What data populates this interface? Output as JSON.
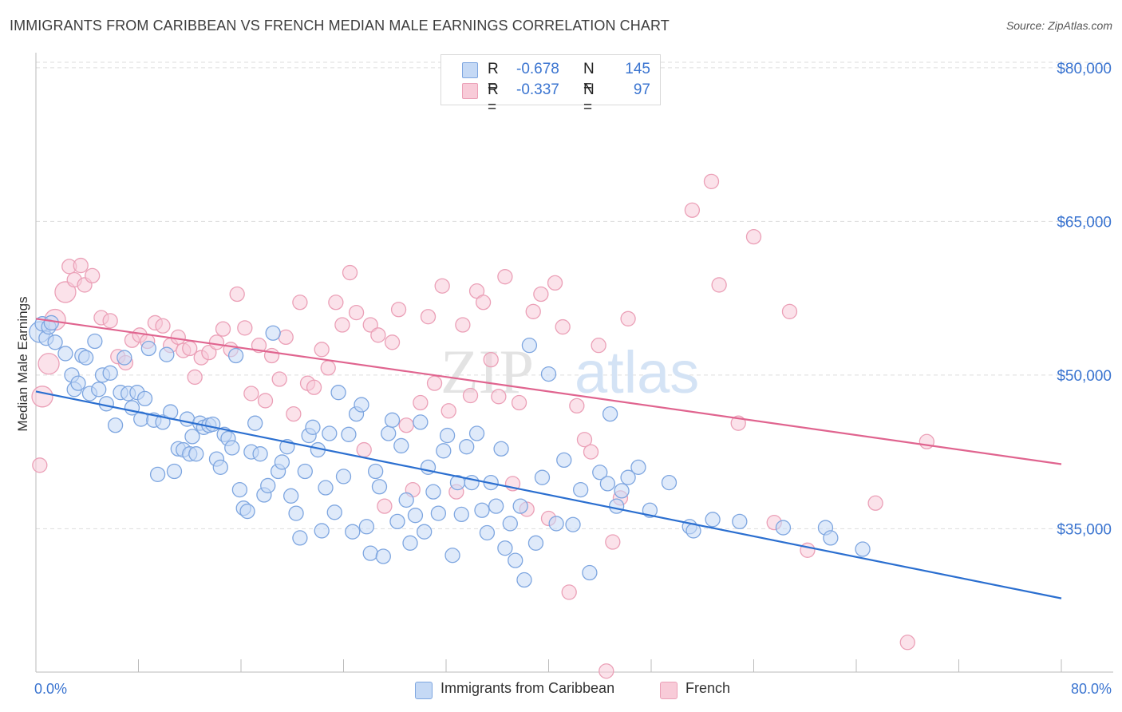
{
  "title": "IMMIGRANTS FROM CARIBBEAN VS FRENCH MEDIAN MALE EARNINGS CORRELATION CHART",
  "source": "Source: ZipAtlas.com",
  "watermark": {
    "zip": "ZIP",
    "atlas": "atlas"
  },
  "legend": {
    "rows": [
      {
        "r_label": "R =",
        "r_value": "-0.678",
        "n_label": "N =",
        "n_value": "145"
      },
      {
        "r_label": "R =",
        "r_value": "-0.337",
        "n_label": "N =",
        "n_value": "97"
      }
    ]
  },
  "bottom_legend": [
    "Immigrants from Caribbean",
    "French"
  ],
  "colors": {
    "blue_fill": "#c5d9f5",
    "blue_stroke": "#7ea6e0",
    "blue_line": "#2b6fd0",
    "pink_fill": "#f8cbd8",
    "pink_stroke": "#eba0b7",
    "pink_line": "#e0648f",
    "axis_text": "#3a74d0",
    "grid": "#dddddd"
  },
  "chart_data": {
    "type": "scatter",
    "xlabel": "",
    "ylabel": "Median Male Earnings",
    "xlim": [
      0,
      80
    ],
    "ylim": [
      21000,
      83500
    ],
    "x_tick_labels": [
      "0.0%",
      "80.0%"
    ],
    "y_ticks": [
      35000,
      50000,
      65000,
      80000
    ],
    "y_tick_labels": [
      "$35,000",
      "$50,000",
      "$65,000",
      "$80,000"
    ],
    "grid": "dashed horizontal",
    "legend_position": "top-center",
    "series": [
      {
        "name": "Immigrants from Caribbean",
        "color": "#7ea6e0",
        "trend": {
          "x": [
            0,
            80
          ],
          "y": [
            48400,
            28200
          ]
        },
        "points": [
          [
            0.3,
            54.2
          ],
          [
            0.5,
            55.0
          ],
          [
            0.8,
            53.6
          ],
          [
            1.0,
            54.7
          ],
          [
            1.2,
            55.1
          ],
          [
            1.5,
            53.2
          ],
          [
            2.3,
            52.1
          ],
          [
            2.8,
            50.0
          ],
          [
            3.0,
            48.6
          ],
          [
            3.3,
            49.2
          ],
          [
            3.6,
            51.9
          ],
          [
            3.9,
            51.7
          ],
          [
            4.2,
            48.2
          ],
          [
            4.6,
            53.3
          ],
          [
            4.9,
            48.6
          ],
          [
            5.2,
            50.0
          ],
          [
            5.5,
            47.2
          ],
          [
            5.8,
            50.2
          ],
          [
            6.2,
            45.1
          ],
          [
            6.6,
            48.3
          ],
          [
            6.9,
            51.7
          ],
          [
            7.2,
            48.2
          ],
          [
            7.5,
            46.8
          ],
          [
            7.9,
            48.3
          ],
          [
            8.2,
            45.7
          ],
          [
            8.5,
            47.7
          ],
          [
            8.8,
            52.6
          ],
          [
            9.2,
            45.6
          ],
          [
            9.5,
            40.3
          ],
          [
            9.9,
            45.4
          ],
          [
            10.2,
            52.0
          ],
          [
            10.5,
            46.4
          ],
          [
            10.8,
            40.6
          ],
          [
            11.1,
            42.8
          ],
          [
            11.5,
            42.7
          ],
          [
            11.8,
            45.7
          ],
          [
            12.0,
            42.3
          ],
          [
            12.2,
            44.0
          ],
          [
            12.5,
            42.3
          ],
          [
            12.8,
            45.3
          ],
          [
            13.1,
            44.9
          ],
          [
            13.5,
            45.1
          ],
          [
            13.8,
            45.2
          ],
          [
            14.1,
            41.8
          ],
          [
            14.4,
            41.0
          ],
          [
            14.7,
            44.2
          ],
          [
            15.0,
            43.8
          ],
          [
            15.3,
            42.9
          ],
          [
            15.6,
            51.9
          ],
          [
            15.9,
            38.8
          ],
          [
            16.2,
            37.0
          ],
          [
            16.5,
            36.7
          ],
          [
            16.8,
            42.5
          ],
          [
            17.1,
            45.3
          ],
          [
            17.5,
            42.3
          ],
          [
            17.8,
            38.3
          ],
          [
            18.1,
            39.2
          ],
          [
            18.5,
            54.1
          ],
          [
            18.9,
            40.6
          ],
          [
            19.2,
            41.5
          ],
          [
            19.6,
            43.0
          ],
          [
            19.9,
            38.2
          ],
          [
            20.3,
            36.5
          ],
          [
            20.6,
            34.1
          ],
          [
            21.0,
            40.6
          ],
          [
            21.3,
            44.1
          ],
          [
            21.6,
            44.9
          ],
          [
            22.0,
            42.7
          ],
          [
            22.3,
            34.8
          ],
          [
            22.6,
            39.0
          ],
          [
            22.9,
            44.3
          ],
          [
            23.3,
            36.6
          ],
          [
            23.6,
            48.3
          ],
          [
            24.0,
            40.1
          ],
          [
            24.4,
            44.2
          ],
          [
            24.7,
            34.7
          ],
          [
            25.0,
            46.2
          ],
          [
            25.4,
            47.1
          ],
          [
            25.8,
            35.2
          ],
          [
            26.1,
            32.6
          ],
          [
            26.5,
            40.6
          ],
          [
            26.8,
            39.1
          ],
          [
            27.1,
            32.3
          ],
          [
            27.5,
            44.3
          ],
          [
            27.8,
            45.6
          ],
          [
            28.2,
            35.7
          ],
          [
            28.5,
            43.1
          ],
          [
            28.9,
            37.8
          ],
          [
            29.2,
            33.6
          ],
          [
            29.6,
            36.3
          ],
          [
            30.0,
            45.4
          ],
          [
            30.3,
            34.7
          ],
          [
            30.6,
            41.0
          ],
          [
            31.0,
            38.6
          ],
          [
            31.4,
            36.5
          ],
          [
            31.8,
            42.6
          ],
          [
            32.1,
            44.1
          ],
          [
            32.5,
            32.4
          ],
          [
            32.9,
            39.5
          ],
          [
            33.2,
            36.4
          ],
          [
            33.6,
            43.0
          ],
          [
            34.0,
            39.5
          ],
          [
            34.4,
            44.3
          ],
          [
            34.8,
            36.8
          ],
          [
            35.2,
            34.6
          ],
          [
            35.5,
            39.5
          ],
          [
            35.9,
            37.2
          ],
          [
            36.3,
            42.8
          ],
          [
            36.6,
            33.1
          ],
          [
            37.0,
            35.5
          ],
          [
            37.4,
            31.9
          ],
          [
            37.8,
            37.2
          ],
          [
            38.1,
            30.0
          ],
          [
            38.5,
            52.9
          ],
          [
            39.0,
            33.6
          ],
          [
            39.5,
            40.0
          ],
          [
            40.0,
            50.1
          ],
          [
            40.6,
            35.5
          ],
          [
            41.2,
            41.7
          ],
          [
            41.9,
            35.4
          ],
          [
            42.5,
            38.8
          ],
          [
            43.2,
            30.7
          ],
          [
            44.0,
            40.5
          ],
          [
            44.6,
            39.4
          ],
          [
            44.8,
            46.2
          ],
          [
            45.3,
            37.2
          ],
          [
            45.7,
            38.7
          ],
          [
            46.2,
            40.0
          ],
          [
            47.0,
            41.0
          ],
          [
            47.9,
            36.8
          ],
          [
            49.4,
            39.5
          ],
          [
            51.0,
            35.2
          ],
          [
            51.3,
            34.8
          ],
          [
            52.8,
            35.9
          ],
          [
            54.9,
            35.7
          ],
          [
            58.3,
            35.1
          ],
          [
            61.6,
            35.1
          ],
          [
            62.0,
            34.1
          ],
          [
            64.5,
            33.0
          ]
        ]
      },
      {
        "name": "French",
        "color": "#eba0b7",
        "trend": {
          "x": [
            0,
            80
          ],
          "y": [
            55500,
            41300
          ]
        },
        "points": [
          [
            0.3,
            41.2
          ],
          [
            0.5,
            47.9
          ],
          [
            1.0,
            51.1
          ],
          [
            1.5,
            55.4
          ],
          [
            2.3,
            58.1
          ],
          [
            2.6,
            60.6
          ],
          [
            3.0,
            59.3
          ],
          [
            3.5,
            60.7
          ],
          [
            3.8,
            58.8
          ],
          [
            4.4,
            59.7
          ],
          [
            5.1,
            55.6
          ],
          [
            5.8,
            55.3
          ],
          [
            6.4,
            51.8
          ],
          [
            7.0,
            51.2
          ],
          [
            7.5,
            53.4
          ],
          [
            8.1,
            53.9
          ],
          [
            8.7,
            53.3
          ],
          [
            9.3,
            55.1
          ],
          [
            9.9,
            54.8
          ],
          [
            10.5,
            52.9
          ],
          [
            11.1,
            53.7
          ],
          [
            11.5,
            52.4
          ],
          [
            12.0,
            52.6
          ],
          [
            12.4,
            49.8
          ],
          [
            12.9,
            51.7
          ],
          [
            13.5,
            52.2
          ],
          [
            14.1,
            53.2
          ],
          [
            14.6,
            54.5
          ],
          [
            15.2,
            52.5
          ],
          [
            15.7,
            57.9
          ],
          [
            16.3,
            54.6
          ],
          [
            16.8,
            48.2
          ],
          [
            17.4,
            52.9
          ],
          [
            17.9,
            47.5
          ],
          [
            18.4,
            51.9
          ],
          [
            19.0,
            49.6
          ],
          [
            19.5,
            53.7
          ],
          [
            20.1,
            46.2
          ],
          [
            20.6,
            57.1
          ],
          [
            21.2,
            49.2
          ],
          [
            21.7,
            48.8
          ],
          [
            22.3,
            52.5
          ],
          [
            22.8,
            50.7
          ],
          [
            23.4,
            57.1
          ],
          [
            23.9,
            54.9
          ],
          [
            24.5,
            60.0
          ],
          [
            25.0,
            56.1
          ],
          [
            25.6,
            42.7
          ],
          [
            26.1,
            54.9
          ],
          [
            26.7,
            53.9
          ],
          [
            27.2,
            37.2
          ],
          [
            27.8,
            53.2
          ],
          [
            28.3,
            56.4
          ],
          [
            28.9,
            45.1
          ],
          [
            29.4,
            38.8
          ],
          [
            30.0,
            47.3
          ],
          [
            30.6,
            55.7
          ],
          [
            31.1,
            49.2
          ],
          [
            31.7,
            58.7
          ],
          [
            32.2,
            46.5
          ],
          [
            32.8,
            38.6
          ],
          [
            33.3,
            54.9
          ],
          [
            33.9,
            48.0
          ],
          [
            34.4,
            58.2
          ],
          [
            34.9,
            57.1
          ],
          [
            35.5,
            51.5
          ],
          [
            36.1,
            47.9
          ],
          [
            36.6,
            59.6
          ],
          [
            37.2,
            39.4
          ],
          [
            37.7,
            47.3
          ],
          [
            38.3,
            36.9
          ],
          [
            38.8,
            56.2
          ],
          [
            39.4,
            57.9
          ],
          [
            40.0,
            36.0
          ],
          [
            40.5,
            59.0
          ],
          [
            41.1,
            54.7
          ],
          [
            41.6,
            28.8
          ],
          [
            42.2,
            47.0
          ],
          [
            42.8,
            43.7
          ],
          [
            43.3,
            42.5
          ],
          [
            43.9,
            52.9
          ],
          [
            44.5,
            21.1
          ],
          [
            45.0,
            33.7
          ],
          [
            45.6,
            38.0
          ],
          [
            46.2,
            55.5
          ],
          [
            51.2,
            66.1
          ],
          [
            52.7,
            68.9
          ],
          [
            53.3,
            58.8
          ],
          [
            54.8,
            45.3
          ],
          [
            56.0,
            63.5
          ],
          [
            57.6,
            35.6
          ],
          [
            58.8,
            56.2
          ],
          [
            60.2,
            32.9
          ],
          [
            65.5,
            37.5
          ],
          [
            68.0,
            23.9
          ],
          [
            69.5,
            43.5
          ]
        ]
      }
    ]
  }
}
